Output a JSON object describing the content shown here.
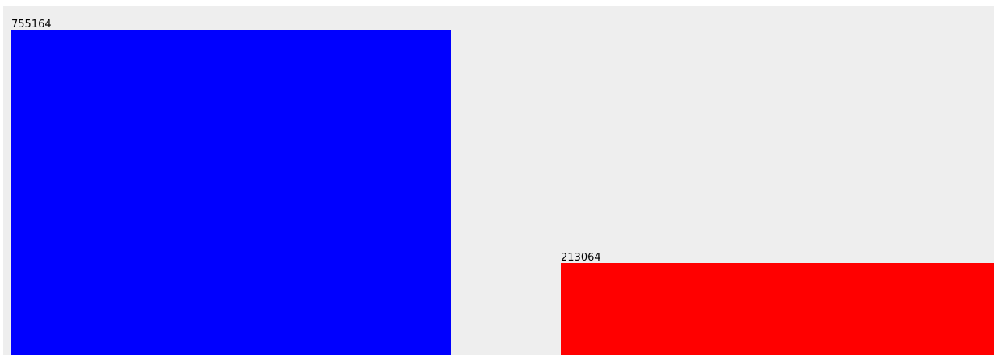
{
  "chart_data": {
    "type": "bar",
    "categories": [
      "",
      ""
    ],
    "values": [
      755164,
      213064
    ],
    "data_labels": [
      "755164",
      "213064"
    ],
    "colors": [
      "#0000ff",
      "#ff0000"
    ],
    "ylim": [
      0,
      810000
    ],
    "title": "",
    "xlabel": "",
    "ylabel": "",
    "grid": false,
    "legend": "none"
  }
}
